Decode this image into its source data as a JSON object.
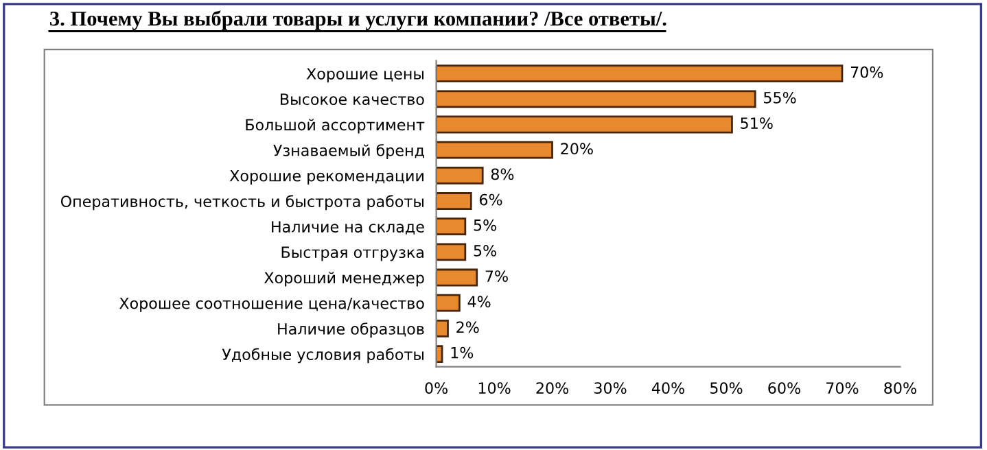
{
  "chart_data": {
    "type": "bar",
    "orientation": "horizontal",
    "title": "3. Почему Вы выбрали товары и услуги компании? /Все ответы/.",
    "categories": [
      "Хорошие цены",
      "Высокое качество",
      "Большой ассортимент",
      "Узнаваемый бренд",
      "Хорошие рекомендации",
      "Оперативность, четкость и быстрота работы",
      "Наличие на складе",
      "Быстрая отгрузка",
      "Хороший менеджер",
      "Хорошее соотношение цена/качество",
      "Наличие образцов",
      "Удобные условия работы"
    ],
    "values": [
      70,
      55,
      51,
      20,
      8,
      6,
      5,
      5,
      7,
      4,
      2,
      1
    ],
    "value_labels": [
      "70%",
      "55%",
      "51%",
      "20%",
      "8%",
      "6%",
      "5%",
      "5%",
      "7%",
      "4%",
      "2%",
      "1%"
    ],
    "color": "#e8892f",
    "xlim": [
      0,
      80
    ],
    "xticks": [
      {
        "value": 0,
        "label": "0%"
      },
      {
        "value": 10,
        "label": "10%"
      },
      {
        "value": 20,
        "label": "20%"
      },
      {
        "value": 30,
        "label": "30%"
      },
      {
        "value": 40,
        "label": "40%"
      },
      {
        "value": 50,
        "label": "50%"
      },
      {
        "value": 60,
        "label": "60%"
      },
      {
        "value": 70,
        "label": "70%"
      },
      {
        "value": 80,
        "label": "80%"
      }
    ],
    "grid": false,
    "legend": false
  }
}
